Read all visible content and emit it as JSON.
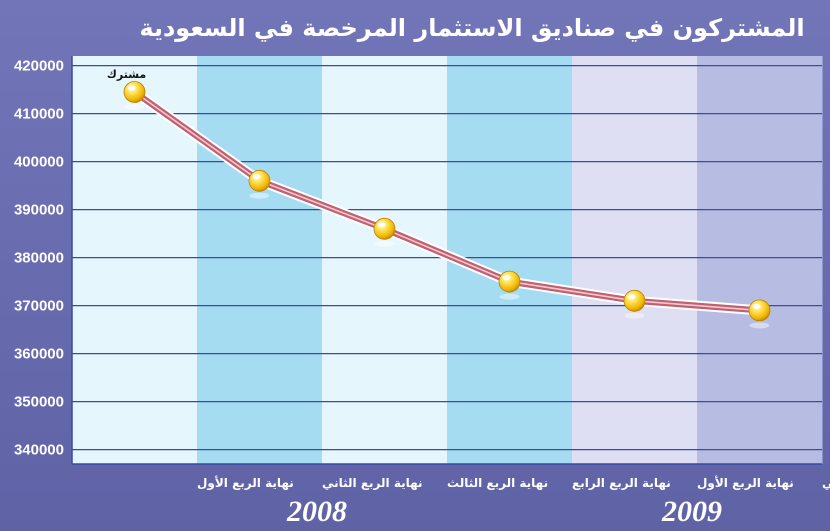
{
  "chart_data": {
    "type": "line",
    "title": "المشتركون في صناديق الاستثمار المرخصة في السعودية",
    "categories": [
      "نهاية الربع الأول",
      "نهاية الربع الثاني",
      "نهاية الربع الثالث",
      "نهاية الربع الرابع",
      "نهاية الربع الأول",
      "نهاية الربع الثاني"
    ],
    "series": [
      {
        "name": "مشترك",
        "values": [
          414500,
          396000,
          386000,
          375000,
          371000,
          369000
        ]
      }
    ],
    "ylim": [
      337000,
      422000
    ],
    "yticks": [
      "420000",
      "410000",
      "400000",
      "390000",
      "380000",
      "370000",
      "360000",
      "350000",
      "340000"
    ],
    "year_labels": [
      "2008",
      "2009"
    ],
    "grid": true,
    "colors": {
      "background": "#6b6fb0",
      "band_light_2008": "#e6f6fd",
      "band_dark_2008": "#a6dcf2",
      "band_light_2009": "#dedff2",
      "band_dark_2009": "#b7bde2",
      "gridline": "#3a4aa3",
      "line": "#c06070",
      "marker": "#f5c400"
    }
  }
}
